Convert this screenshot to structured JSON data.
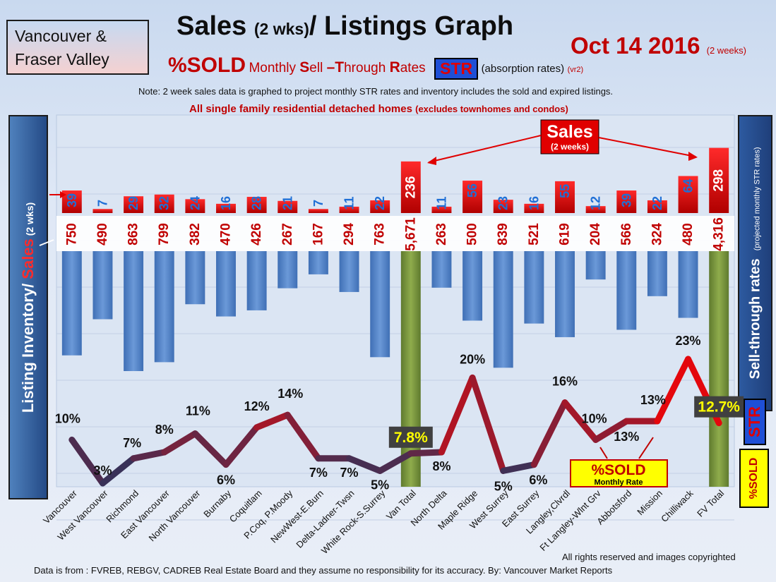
{
  "region": {
    "line1": "Vancouver &",
    "line2": "Fraser Valley"
  },
  "title": {
    "main": "Sales ",
    "paren": "(2 wks)",
    "rest": "/ Listings Graph"
  },
  "date": {
    "main": "Oct 14 2016",
    "sub": "(2 weeks)"
  },
  "subtitle": {
    "pct": "%SOLD",
    "monthly": "Monthly ",
    "s": "S",
    "ell": "ell ",
    "t": "–T",
    "hrough": "hrough ",
    "r": "R",
    "ates": "ates",
    "str": "STR",
    "absorption": "(absorption rates)",
    "ver": "(vr2)"
  },
  "note": "Note: 2 week sales data is graphed to project monthly STR rates and inventory includes the sold and expired listings.",
  "scope": {
    "main": "All single family residential detached homes ",
    "sub": "(excludes townhomes and condos)"
  },
  "left_axis": {
    "a": "Listing Inventory/ ",
    "b": "Sales",
    "c": " (2 wks)"
  },
  "right_axis": {
    "a": "Sell-through rates",
    "b": "(projected monthly STR rates)"
  },
  "badges": {
    "str": "STR",
    "sold": "%SOLD"
  },
  "callouts": {
    "sales_title": "Sales",
    "sales_sub": "(2 weeks)",
    "sold_title": "%SOLD",
    "sold_sub": "Monthly Rate"
  },
  "footer": {
    "copyright": "All rights reserved and  images copyrighted",
    "source": "Data is from : FVREB, REBGV, CADREB Real Estate Board and they assume no responsibility for its accuracy. By: Vancouver Market Reports"
  },
  "colors": {
    "sales": "#e00000",
    "inventory": "#4f81bd",
    "total": "#77933c",
    "line_low": "#1f3864",
    "line_high": "#ff0000",
    "total_label_bg": "#404040",
    "total_label_fg": "#ffff00"
  },
  "chart_data": {
    "type": "bar",
    "categories": [
      "Vancouver",
      "West Vancouver",
      "Richmond",
      "East Vancouver",
      "North Vancouver",
      "Burnaby",
      "Coquitlam",
      "P.Coq, P.Moody",
      "NewWest-E.Burn",
      "Delta-Ladner-Twsn",
      "White Rock-S.Surrey",
      "Van Total",
      "North Delta",
      "Maple Ridge",
      "West Surrey",
      "East Surrey",
      "Langley,Clvrdl",
      "Ft Langley-Wlnt Grv",
      "Abbotsford",
      "Mission",
      "Chilliwack",
      "FV Total"
    ],
    "series": [
      {
        "name": "Sales (2 weeks)",
        "values": [
          39,
          7,
          29,
          32,
          24,
          16,
          28,
          21,
          7,
          11,
          22,
          236,
          11,
          56,
          23,
          16,
          55,
          12,
          39,
          22,
          64,
          298
        ]
      },
      {
        "name": "Listing Inventory",
        "values": [
          "750",
          "490",
          "863",
          "799",
          "382",
          "470",
          "426",
          "267",
          "167",
          "294",
          "763",
          "5,671",
          "263",
          "500",
          "839",
          "521",
          "619",
          "204",
          "566",
          "324",
          "480",
          "4,316"
        ]
      },
      {
        "name": "%SOLD Monthly Rate",
        "values": [
          "10%",
          "3%",
          "7%",
          "8%",
          "11%",
          "6%",
          "12%",
          "14%",
          "7%",
          "7%",
          "5%",
          "7.8%",
          "8%",
          "20%",
          "5%",
          "6%",
          "16%",
          "10%",
          "13%",
          "13%",
          "23%",
          "12.7%"
        ]
      }
    ]
  }
}
